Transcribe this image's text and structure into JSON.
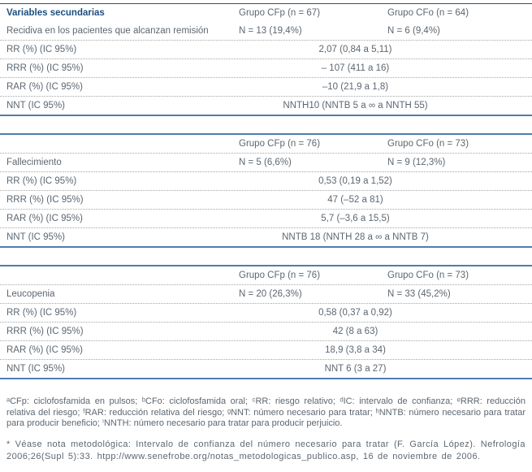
{
  "table": {
    "sections": [
      {
        "header_label": "Variables secundarias",
        "group1_header": "Grupo CFp (n = 67)",
        "group2_header": "Grupo CFo (n = 64)",
        "topic": {
          "label": "Recidiva en los pacientes que alcanzan remisión",
          "group1": "N = 13 (19,4%)",
          "group2": "N = 6 (9,4%)"
        },
        "stats": [
          {
            "label": "RR (%) (IC 95%)",
            "value": "2,07 (0,84 a 5,11)"
          },
          {
            "label": "RRR (%) (IC 95%)",
            "value": "– 107 (411 a 16)"
          },
          {
            "label": "RAR (%) (IC 95%)",
            "value": "–10 (21,9 a 1,8)"
          },
          {
            "label": "NNT (IC 95%)",
            "value": "NNTH10 (NNTB 5 a ∞ a NNTH 55)"
          }
        ]
      },
      {
        "header_label": "",
        "group1_header": "Grupo CFp (n = 76)",
        "group2_header": "Grupo CFo (n = 73)",
        "topic": {
          "label": "Fallecimiento",
          "group1": "N = 5 (6,6%)",
          "group2": "N = 9 (12,3%)"
        },
        "stats": [
          {
            "label": "RR (%) (IC 95%)",
            "value": "0,53 (0,19 a 1,52)"
          },
          {
            "label": "RRR (%) (IC 95%)",
            "value": "47 (–52 a 81)"
          },
          {
            "label": "RAR (%) (IC 95%)",
            "value": "5,7 (–3,6 a 15,5)"
          },
          {
            "label": "NNT (IC 95%)",
            "value": "NNTB 18 (NNTH 28 a ∞ a NNTB 7)"
          }
        ]
      },
      {
        "header_label": "",
        "group1_header": "Grupo CFp (n = 76)",
        "group2_header": "Grupo CFo (n = 73)",
        "topic": {
          "label": "Leucopenia",
          "group1": "N = 20 (26,3%)",
          "group2": "N = 33 (45,2%)"
        },
        "stats": [
          {
            "label": "RR (%) (IC 95%)",
            "value": "0,58 (0,37 a 0,92)"
          },
          {
            "label": "RRR (%) (IC 95%)",
            "value": "42 (8 a 63)"
          },
          {
            "label": "RAR (%) (IC 95%)",
            "value": "18,9 (3,8 a 34)"
          },
          {
            "label": "NNT (IC 95%)",
            "value": "NNT 6 (3 a 27)"
          }
        ]
      }
    ]
  },
  "footnotes": {
    "abbreviations": "ᵃCFp: ciclofosfamida en pulsos; ᵇCFo: ciclofosfamida oral; ᶜRR: riesgo relativo; ᵈIC: intervalo de confianza; ᵉRRR: reducción relativa del riesgo; ᶠRAR: reducción relativa del riesgo; ᵍNNT: número necesario para tratar; ʰNNTB: número necesario para tratar para producir beneficio; ⁱNNTH: número necesario para tratar para producir perjuicio.",
    "methodological_note": "* Véase nota metodológica: Intervalo de confianza del número necesario para tratar (F. García López). Nefrología 2006;26(Supl 5):33. htpp://www.senefrobe.org/notas_metodologicas_publico.asp, 16 de noviembre de 2006."
  },
  "colors": {
    "section_rule": "#4e7dae",
    "top_rule": "#2e506e",
    "header_text": "#1c4f80",
    "body_text": "#5d6770",
    "dotted_divider": "#a6a6a6"
  }
}
